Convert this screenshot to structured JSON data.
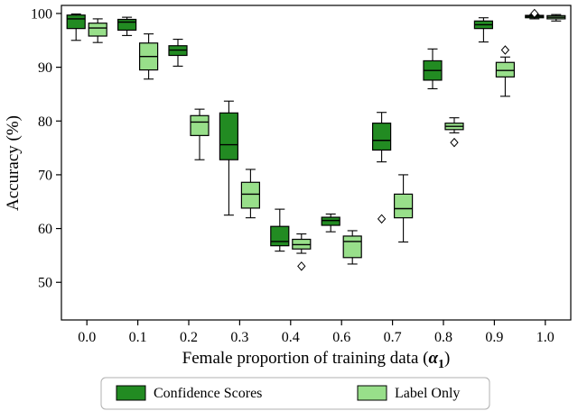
{
  "figure": {
    "ylabel": "Accuracy (%)",
    "xlabel": {
      "prefix": "Female proportion of training data (",
      "alpha": "α",
      "subscript": "1",
      "suffix": ")"
    }
  },
  "legend": {
    "items": [
      {
        "label": "Confidence Scores",
        "color": "#228b22",
        "edge": "#000000"
      },
      {
        "label": "Label Only",
        "color": "#98df8a",
        "edge": "#000000"
      }
    ]
  },
  "chart_data": {
    "type": "boxplot",
    "title": "",
    "xlabel": "Female proportion of training data (α1)",
    "ylabel": "Accuracy (%)",
    "categories": [
      "0.0",
      "0.1",
      "0.2",
      "0.3",
      "0.4",
      "0.6",
      "0.7",
      "0.8",
      "0.9",
      "1.0"
    ],
    "yticks": [
      50,
      60,
      70,
      80,
      90,
      100
    ],
    "ylim": [
      43,
      101.5
    ],
    "grid": false,
    "legend_position": "below-plot",
    "series": [
      {
        "name": "Confidence Scores",
        "color": "#228b22",
        "boxes": [
          {
            "whislo": 95.0,
            "q1": 97.2,
            "med": 99.0,
            "q3": 99.7,
            "whishi": 99.9,
            "fliers": []
          },
          {
            "whislo": 95.9,
            "q1": 96.9,
            "med": 98.4,
            "q3": 98.9,
            "whishi": 99.3,
            "fliers": []
          },
          {
            "whislo": 90.2,
            "q1": 92.2,
            "med": 93.2,
            "q3": 94.0,
            "whishi": 95.2,
            "fliers": []
          },
          {
            "whislo": 62.5,
            "q1": 72.8,
            "med": 75.6,
            "q3": 81.5,
            "whishi": 83.7,
            "fliers": []
          },
          {
            "whislo": 55.8,
            "q1": 56.8,
            "med": 57.6,
            "q3": 60.4,
            "whishi": 63.6,
            "fliers": []
          },
          {
            "whislo": 59.4,
            "q1": 60.6,
            "med": 61.5,
            "q3": 62.1,
            "whishi": 62.7,
            "fliers": []
          },
          {
            "whislo": 72.4,
            "q1": 74.6,
            "med": 76.4,
            "q3": 79.6,
            "whishi": 81.6,
            "fliers": [
              61.8
            ]
          },
          {
            "whislo": 86.0,
            "q1": 87.6,
            "med": 89.4,
            "q3": 91.2,
            "whishi": 93.4,
            "fliers": []
          },
          {
            "whislo": 94.7,
            "q1": 97.2,
            "med": 97.9,
            "q3": 98.6,
            "whishi": 99.2,
            "fliers": []
          },
          {
            "whislo": 99.0,
            "q1": 99.2,
            "med": 99.45,
            "q3": 99.65,
            "whishi": 99.8,
            "fliers": [
              100.0
            ]
          }
        ]
      },
      {
        "name": "Label Only",
        "color": "#98df8a",
        "boxes": [
          {
            "whislo": 94.6,
            "q1": 95.8,
            "med": 97.3,
            "q3": 98.2,
            "whishi": 99.0,
            "fliers": []
          },
          {
            "whislo": 87.8,
            "q1": 89.5,
            "med": 92.0,
            "q3": 94.5,
            "whishi": 96.2,
            "fliers": []
          },
          {
            "whislo": 72.8,
            "q1": 77.3,
            "med": 79.8,
            "q3": 81.0,
            "whishi": 82.2,
            "fliers": []
          },
          {
            "whislo": 62.0,
            "q1": 63.8,
            "med": 66.4,
            "q3": 68.6,
            "whishi": 71.0,
            "fliers": []
          },
          {
            "whislo": 55.4,
            "q1": 56.2,
            "med": 57.0,
            "q3": 58.0,
            "whishi": 59.0,
            "fliers": [
              53.0
            ]
          },
          {
            "whislo": 53.4,
            "q1": 54.6,
            "med": 57.6,
            "q3": 58.6,
            "whishi": 59.6,
            "fliers": []
          },
          {
            "whislo": 57.5,
            "q1": 62.0,
            "med": 63.7,
            "q3": 66.4,
            "whishi": 70.0,
            "fliers": []
          },
          {
            "whislo": 77.8,
            "q1": 78.4,
            "med": 79.0,
            "q3": 79.6,
            "whishi": 80.6,
            "fliers": [
              76.0
            ]
          },
          {
            "whislo": 84.6,
            "q1": 88.2,
            "med": 89.4,
            "q3": 90.9,
            "whishi": 91.9,
            "fliers": [
              93.2
            ]
          },
          {
            "whislo": 98.6,
            "q1": 99.0,
            "med": 99.3,
            "q3": 99.6,
            "whishi": 99.8,
            "fliers": []
          }
        ]
      }
    ]
  }
}
